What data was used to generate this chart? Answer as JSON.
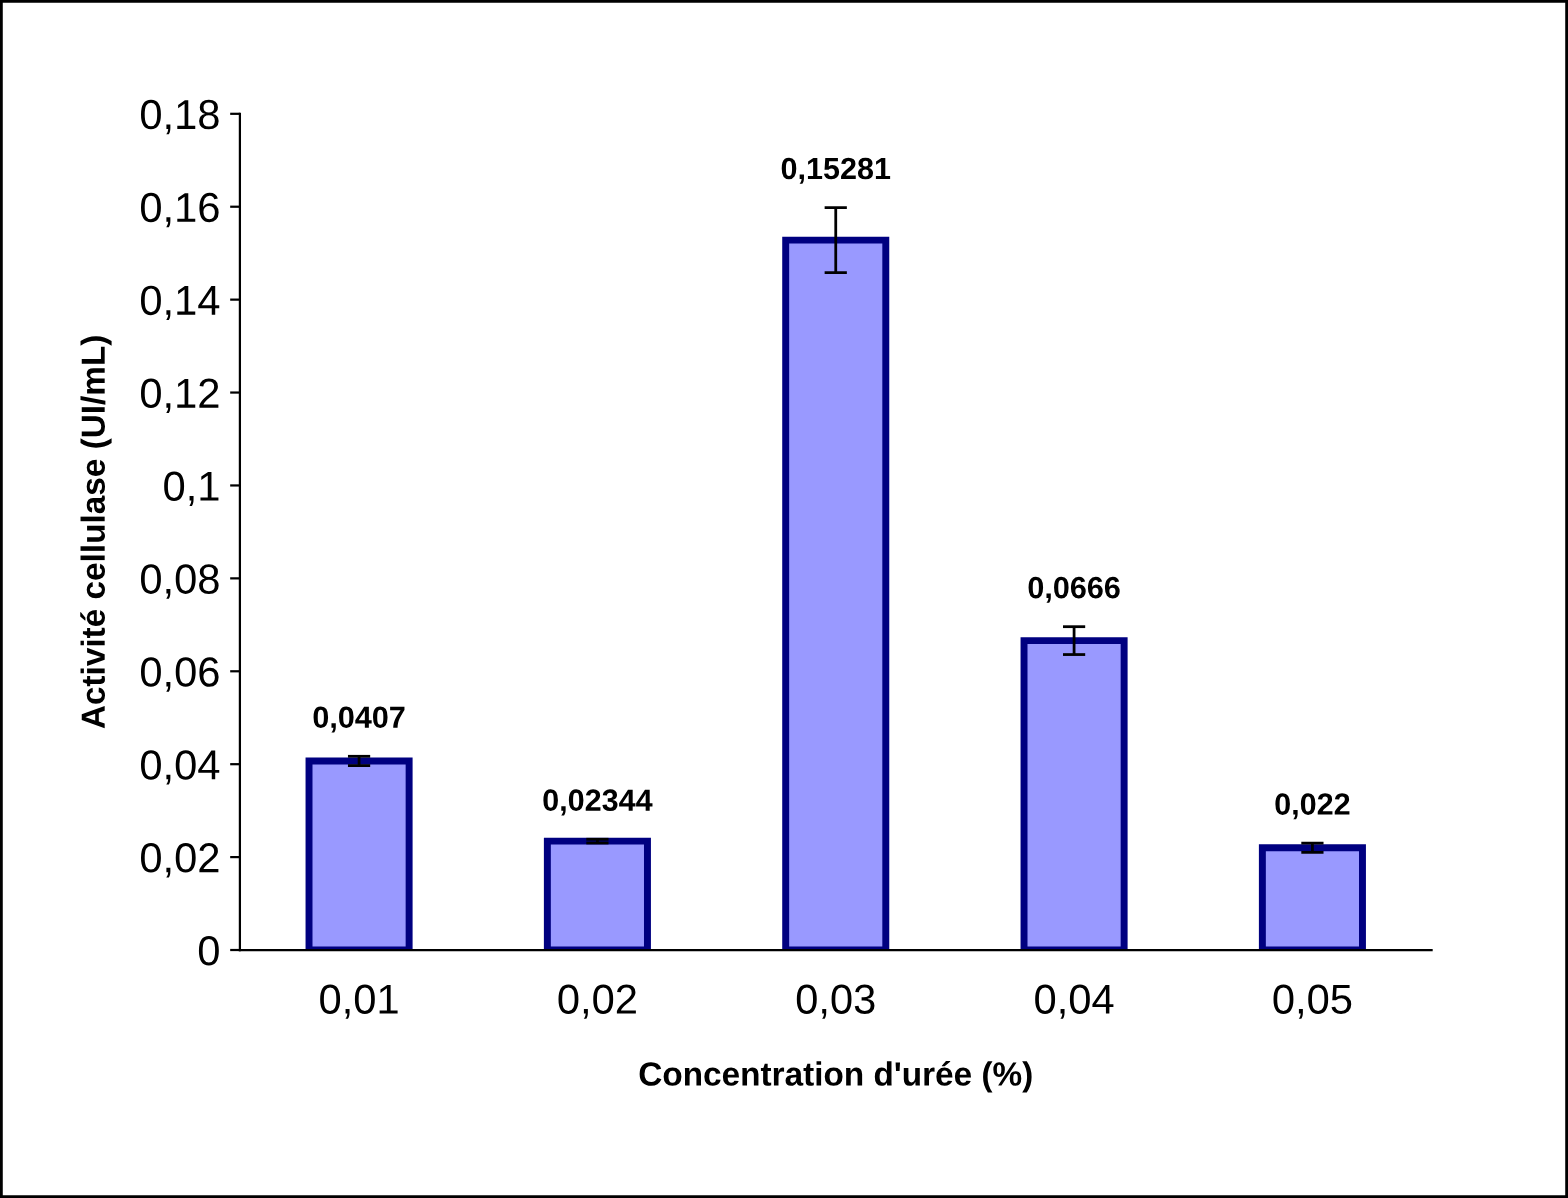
{
  "chart_data": {
    "type": "bar",
    "xlabel": "Concentration d'urée (%)",
    "ylabel": "Activité cellulase (UI/mL)",
    "categories": [
      "0,01",
      "0,02",
      "0,03",
      "0,04",
      "0,05"
    ],
    "values": [
      0.0407,
      0.02344,
      0.15281,
      0.0666,
      0.022
    ],
    "value_labels": [
      "0,0407",
      "0,02344",
      "0,15281",
      "0,0666",
      "0,022"
    ],
    "errors": [
      0.001,
      0.0004,
      0.007,
      0.003,
      0.001
    ],
    "color": "#9999ff",
    "ylim": [
      0,
      0.18
    ],
    "yticks": [
      0,
      {
        "value": 0.02,
        "label": "0,02"
      },
      {
        "value": 0.04,
        "label": "0,04"
      },
      {
        "value": 0.06,
        "label": "0,06"
      },
      {
        "value": 0.08,
        "label": "0,08"
      },
      {
        "value": 0.1,
        "label": "0,1"
      },
      {
        "value": 0.12,
        "label": "0,12"
      },
      {
        "value": 0.14,
        "label": "0,14"
      },
      {
        "value": 0.16,
        "label": "0,16"
      },
      {
        "value": 0.18,
        "label": "0,18"
      }
    ],
    "grid": false,
    "legend": false
  }
}
